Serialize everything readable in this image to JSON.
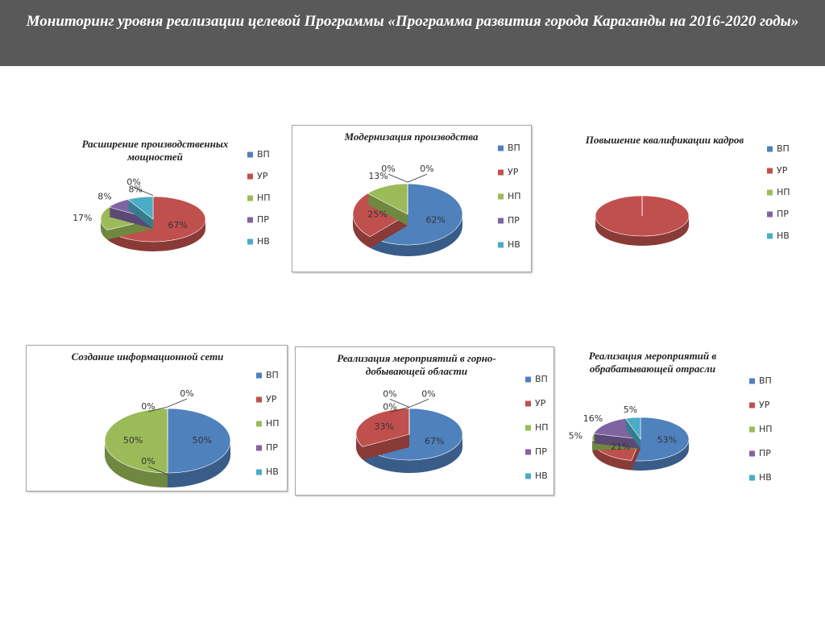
{
  "header": {
    "title": "Мониторинг уровня реализации целевой Программы «Программа развития города Караганды на 2016-2020 годы»"
  },
  "chart_data": [
    {
      "type": "pie",
      "title": "Расширение производственных мощностей",
      "categories": [
        "ВП",
        "УР",
        "НП",
        "ПР",
        "НВ"
      ],
      "values": [
        0,
        67,
        17,
        8,
        8
      ],
      "value_labels": [
        "0%",
        "67%",
        "17%",
        "8%",
        "8%"
      ],
      "colors": [
        "#4f81bd",
        "#c0504d",
        "#9bbb59",
        "#8064a2",
        "#4bacc6"
      ],
      "legend": "right"
    },
    {
      "type": "pie",
      "title": "Модернизация производства",
      "categories": [
        "ВП",
        "УР",
        "НП",
        "ПР",
        "НВ"
      ],
      "values": [
        62,
        25,
        13,
        0,
        0
      ],
      "value_labels": [
        "62%",
        "25%",
        "13%",
        "0%",
        "0%"
      ],
      "colors": [
        "#4f81bd",
        "#c0504d",
        "#9bbb59",
        "#8064a2",
        "#4bacc6"
      ],
      "legend": "right"
    },
    {
      "type": "pie",
      "title": "Повышение квалификации кадров",
      "categories": [
        "ВП",
        "УР",
        "НП",
        "ПР",
        "НВ"
      ],
      "values": [
        0,
        100,
        0,
        0,
        0
      ],
      "colors": [
        "#4f81bd",
        "#c0504d",
        "#9bbb59",
        "#8064a2",
        "#4bacc6"
      ],
      "legend": "right"
    },
    {
      "type": "pie",
      "title": "Создание информационной сети",
      "categories": [
        "ВП",
        "УР",
        "НП",
        "ПР",
        "НВ"
      ],
      "values": [
        50,
        0,
        50,
        0,
        0
      ],
      "value_labels": [
        "50%",
        "0%",
        "50%",
        "0%",
        "0%"
      ],
      "colors": [
        "#4f81bd",
        "#c0504d",
        "#9bbb59",
        "#8064a2",
        "#4bacc6"
      ],
      "legend": "right"
    },
    {
      "type": "pie",
      "title": "Реализация мероприятий в горно-добывающей области",
      "categories": [
        "ВП",
        "УР",
        "НП",
        "ПР",
        "НВ"
      ],
      "values": [
        67,
        33,
        0,
        0,
        0
      ],
      "value_labels": [
        "67%",
        "33%",
        "0%",
        "0%",
        "0%"
      ],
      "colors": [
        "#4f81bd",
        "#c0504d",
        "#9bbb59",
        "#8064a2",
        "#4bacc6"
      ],
      "legend": "right"
    },
    {
      "type": "pie",
      "title": "Реализация мероприятий в обрабатывающей отрасли",
      "categories": [
        "ВП",
        "УР",
        "НП",
        "ПР",
        "НВ"
      ],
      "values": [
        53,
        21,
        5,
        16,
        5
      ],
      "value_labels": [
        "53%",
        "21%",
        "5%",
        "16%",
        "5%"
      ],
      "colors": [
        "#4f81bd",
        "#c0504d",
        "#9bbb59",
        "#8064a2",
        "#4bacc6"
      ],
      "legend": "right"
    }
  ]
}
